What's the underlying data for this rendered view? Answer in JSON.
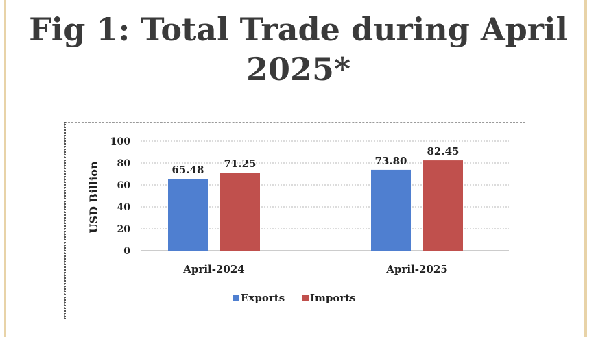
{
  "page": {
    "title_line1": "Fig 1: Total Trade during April",
    "title_line2": "2025*"
  },
  "chart_data": {
    "type": "bar",
    "categories": [
      "April-2024",
      "April-2025"
    ],
    "series": [
      {
        "name": "Exports",
        "values": [
          65.48,
          73.8
        ],
        "labels": [
          "65.48",
          "73.80"
        ],
        "color": "#4f7fd0"
      },
      {
        "name": "Imports",
        "values": [
          71.25,
          82.45
        ],
        "labels": [
          "71.25",
          "82.45"
        ],
        "color": "#c0504d"
      }
    ],
    "ylabel": "USD Billion",
    "ylim": [
      0,
      100
    ],
    "yticks": [
      "0",
      "20",
      "40",
      "60",
      "80",
      "100"
    ],
    "grid": true,
    "legend": "bottom"
  }
}
